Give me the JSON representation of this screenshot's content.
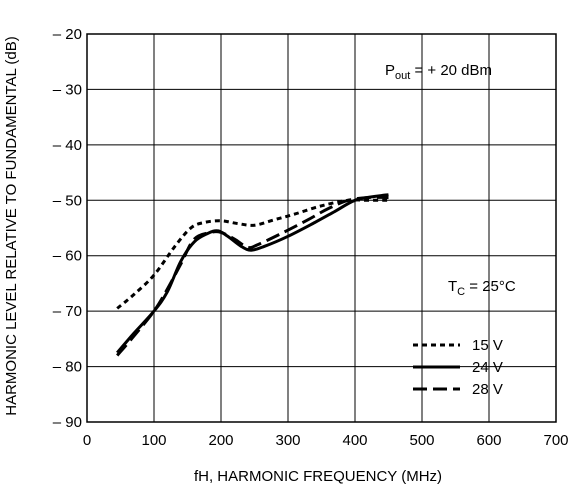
{
  "chart_data": {
    "type": "line",
    "title": "",
    "xlabel": "fH, HARMONIC FREQUENCY (MHz)",
    "ylabel": "HARMONIC LEVEL RELATIVE TO FUNDAMENTAL (dB)",
    "xlim": [
      0,
      700
    ],
    "ylim": [
      -90,
      -20
    ],
    "x_ticks": [
      0,
      100,
      200,
      300,
      400,
      500,
      600,
      700
    ],
    "y_ticks": [
      -20,
      -30,
      -40,
      -50,
      -60,
      -70,
      -80,
      -90
    ],
    "x_tick_labels": [
      "0",
      "100",
      "200",
      "300",
      "400",
      "500",
      "600",
      "700"
    ],
    "y_tick_labels": [
      "– 20",
      "– 30",
      "– 40",
      "– 50",
      "– 60",
      "– 70",
      "– 80",
      "– 90"
    ],
    "grid": true,
    "legend_position": "bottom-right",
    "annotations": {
      "pout": {
        "main": "P",
        "sub": "out",
        "rest": " = + 20 dBm"
      },
      "tc": {
        "main": "T",
        "sub": "C",
        "rest": " = 25°C"
      }
    },
    "series": [
      {
        "name": "15 V",
        "style": "dotted",
        "x": [
          45,
          70,
          100,
          130,
          155,
          175,
          200,
          225,
          250,
          280,
          310,
          350,
          390,
          420,
          450
        ],
        "y": [
          -69.5,
          -67,
          -63.5,
          -58.5,
          -55,
          -54,
          -53.7,
          -54.2,
          -54.5,
          -53.5,
          -52.5,
          -51,
          -50,
          -50,
          -50
        ]
      },
      {
        "name": "24 V",
        "style": "solid",
        "x": [
          45,
          70,
          100,
          120,
          140,
          160,
          180,
          195,
          210,
          230,
          245,
          265,
          300,
          340,
          370,
          400,
          430,
          450
        ],
        "y": [
          -77.5,
          -74,
          -70,
          -66.5,
          -61,
          -57.5,
          -56,
          -55.5,
          -56.5,
          -58.3,
          -59,
          -58.3,
          -56.5,
          -54,
          -52,
          -50,
          -49.3,
          -49
        ]
      },
      {
        "name": "28 V",
        "style": "dashed",
        "x": [
          45,
          70,
          100,
          120,
          140,
          160,
          185,
          200,
          220,
          240,
          255,
          290,
          330,
          360,
          390,
          420,
          450
        ],
        "y": [
          -78,
          -74.5,
          -70,
          -66,
          -61.5,
          -57,
          -55.8,
          -55.8,
          -57,
          -58.5,
          -58,
          -56,
          -53.5,
          -51.5,
          -50,
          -49.5,
          -49.5
        ]
      }
    ],
    "colors": {
      "line": "#000000",
      "grid": "#000000",
      "background": "#ffffff"
    }
  }
}
